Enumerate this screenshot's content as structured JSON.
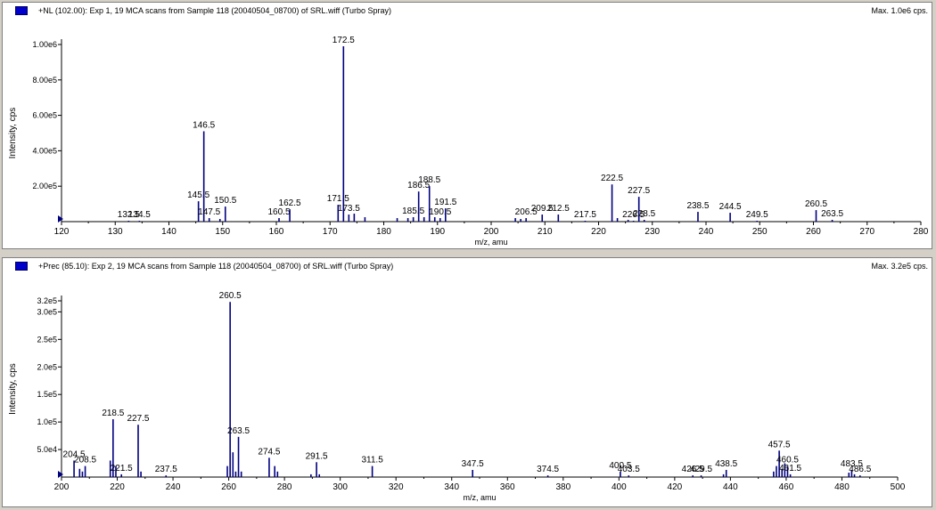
{
  "chart_data": [
    {
      "type": "bar",
      "header": "+NL (102.00): Exp 1, 19 MCA scans from Sample 118 (20040504_08700) of SRL.wiff (Turbo Spray)",
      "max_label": "Max. 1.0e6 cps.",
      "xlabel": "m/z, amu",
      "ylabel": "Intensity, cps",
      "xlim": [
        120,
        280
      ],
      "ylim": [
        0,
        1000000
      ],
      "xticks": [
        120,
        130,
        140,
        150,
        160,
        170,
        180,
        190,
        200,
        210,
        220,
        230,
        240,
        250,
        260,
        270,
        280
      ],
      "yticks": [
        {
          "value": 200000,
          "label": "2.00e5"
        },
        {
          "value": 400000,
          "label": "4.00e5"
        },
        {
          "value": 600000,
          "label": "6.00e5"
        },
        {
          "value": 800000,
          "label": "8.00e5"
        },
        {
          "value": 1000000,
          "label": "1.00e6"
        }
      ],
      "peaks": [
        {
          "x": 132.5,
          "y": 5000,
          "label": "132.5"
        },
        {
          "x": 134.5,
          "y": 5000,
          "label": "134.5"
        },
        {
          "x": 145.5,
          "y": 115000,
          "label": "145.5"
        },
        {
          "x": 146.5,
          "y": 510000,
          "label": "146.5"
        },
        {
          "x": 147.5,
          "y": 20000,
          "label": "147.5"
        },
        {
          "x": 149.5,
          "y": 15000
        },
        {
          "x": 150.5,
          "y": 85000,
          "label": "150.5"
        },
        {
          "x": 160.5,
          "y": 20000,
          "label": "160.5"
        },
        {
          "x": 162.5,
          "y": 70000,
          "label": "162.5"
        },
        {
          "x": 171.5,
          "y": 95000,
          "label": "171.5"
        },
        {
          "x": 172.5,
          "y": 990000,
          "label": "172.5"
        },
        {
          "x": 173.5,
          "y": 40000,
          "label": "173.5"
        },
        {
          "x": 174.5,
          "y": 45000
        },
        {
          "x": 176.5,
          "y": 25000
        },
        {
          "x": 182.5,
          "y": 20000
        },
        {
          "x": 184.5,
          "y": 20000
        },
        {
          "x": 185.5,
          "y": 25000,
          "label": "185.5"
        },
        {
          "x": 186.5,
          "y": 170000,
          "label": "186.5"
        },
        {
          "x": 187.5,
          "y": 25000
        },
        {
          "x": 188.5,
          "y": 200000,
          "label": "188.5"
        },
        {
          "x": 189.5,
          "y": 25000
        },
        {
          "x": 190.5,
          "y": 20000,
          "label": "190.5"
        },
        {
          "x": 191.5,
          "y": 75000,
          "label": "191.5"
        },
        {
          "x": 204.5,
          "y": 20000
        },
        {
          "x": 205.5,
          "y": 15000
        },
        {
          "x": 206.5,
          "y": 20000,
          "label": "206.5"
        },
        {
          "x": 209.5,
          "y": 40000,
          "label": "209.5"
        },
        {
          "x": 212.5,
          "y": 40000,
          "label": "212.5"
        },
        {
          "x": 217.5,
          "y": 5000,
          "label": "217.5"
        },
        {
          "x": 222.5,
          "y": 210000,
          "label": "222.5"
        },
        {
          "x": 223.5,
          "y": 20000
        },
        {
          "x": 225.5,
          "y": 10000
        },
        {
          "x": 226.5,
          "y": 5000,
          "label": "226.5"
        },
        {
          "x": 227.5,
          "y": 140000,
          "label": "227.5"
        },
        {
          "x": 228.5,
          "y": 10000,
          "label": "228.5"
        },
        {
          "x": 238.5,
          "y": 55000,
          "label": "238.5"
        },
        {
          "x": 244.5,
          "y": 50000,
          "label": "244.5"
        },
        {
          "x": 249.5,
          "y": 5000,
          "label": "249.5"
        },
        {
          "x": 260.5,
          "y": 65000,
          "label": "260.5"
        },
        {
          "x": 263.5,
          "y": 10000,
          "label": "263.5"
        }
      ]
    },
    {
      "type": "bar",
      "header": "+Prec (85.10): Exp 2, 19 MCA scans from Sample 118 (20040504_08700) of SRL.wiff (Turbo Spray)",
      "max_label": "Max. 3.2e5 cps.",
      "xlabel": "m/z, amu",
      "ylabel": "Intensity, cps",
      "xlim": [
        200,
        500
      ],
      "ylim": [
        0,
        320000
      ],
      "xticks": [
        200,
        220,
        240,
        260,
        280,
        300,
        320,
        340,
        360,
        380,
        400,
        420,
        440,
        460,
        480,
        500
      ],
      "yticks": [
        {
          "value": 50000,
          "label": "5.0e4"
        },
        {
          "value": 100000,
          "label": "1.0e5"
        },
        {
          "value": 150000,
          "label": "1.5e5"
        },
        {
          "value": 200000,
          "label": "2.0e5"
        },
        {
          "value": 250000,
          "label": "2.5e5"
        },
        {
          "value": 300000,
          "label": "3.0e5"
        },
        {
          "value": 320000,
          "label": "3.2e5"
        }
      ],
      "peaks": [
        {
          "x": 204.5,
          "y": 30000,
          "label": "204.5"
        },
        {
          "x": 206.5,
          "y": 15000
        },
        {
          "x": 207.5,
          "y": 10000
        },
        {
          "x": 208.5,
          "y": 20000,
          "label": "208.5"
        },
        {
          "x": 217.5,
          "y": 30000
        },
        {
          "x": 218.5,
          "y": 105000,
          "label": "218.5"
        },
        {
          "x": 219.5,
          "y": 20000
        },
        {
          "x": 221.5,
          "y": 5000,
          "label": "221.5"
        },
        {
          "x": 227.5,
          "y": 95000,
          "label": "227.5"
        },
        {
          "x": 228.5,
          "y": 10000
        },
        {
          "x": 237.5,
          "y": 3000,
          "label": "237.5"
        },
        {
          "x": 259.5,
          "y": 20000
        },
        {
          "x": 260.5,
          "y": 318000,
          "label": "260.5"
        },
        {
          "x": 261.5,
          "y": 45000
        },
        {
          "x": 262.5,
          "y": 10000
        },
        {
          "x": 263.5,
          "y": 73000,
          "label": "263.5"
        },
        {
          "x": 264.5,
          "y": 10000
        },
        {
          "x": 274.5,
          "y": 35000,
          "label": "274.5"
        },
        {
          "x": 276.5,
          "y": 20000
        },
        {
          "x": 277.5,
          "y": 10000
        },
        {
          "x": 289.5,
          "y": 5000
        },
        {
          "x": 291.5,
          "y": 27000,
          "label": "291.5"
        },
        {
          "x": 292.5,
          "y": 5000
        },
        {
          "x": 311.5,
          "y": 20000,
          "label": "311.5"
        },
        {
          "x": 347.5,
          "y": 13000,
          "label": "347.5"
        },
        {
          "x": 374.5,
          "y": 3000,
          "label": "374.5"
        },
        {
          "x": 400.5,
          "y": 10000,
          "label": "400.5"
        },
        {
          "x": 403.5,
          "y": 3000,
          "label": "403.5"
        },
        {
          "x": 426.5,
          "y": 3000,
          "label": "426.5"
        },
        {
          "x": 429.5,
          "y": 3000,
          "label": "429.5"
        },
        {
          "x": 437.5,
          "y": 5000
        },
        {
          "x": 438.5,
          "y": 13000,
          "label": "438.5"
        },
        {
          "x": 455.5,
          "y": 10000
        },
        {
          "x": 456.5,
          "y": 20000
        },
        {
          "x": 457.5,
          "y": 48000,
          "label": "457.5"
        },
        {
          "x": 458.5,
          "y": 15000
        },
        {
          "x": 459.5,
          "y": 25000
        },
        {
          "x": 460.5,
          "y": 20000,
          "label": "460.5"
        },
        {
          "x": 461.5,
          "y": 5000,
          "label": "461.5"
        },
        {
          "x": 482.5,
          "y": 8000
        },
        {
          "x": 483.5,
          "y": 13000,
          "label": "483.5"
        },
        {
          "x": 484.5,
          "y": 5000
        },
        {
          "x": 486.5,
          "y": 3000,
          "label": "486.5"
        }
      ]
    }
  ]
}
